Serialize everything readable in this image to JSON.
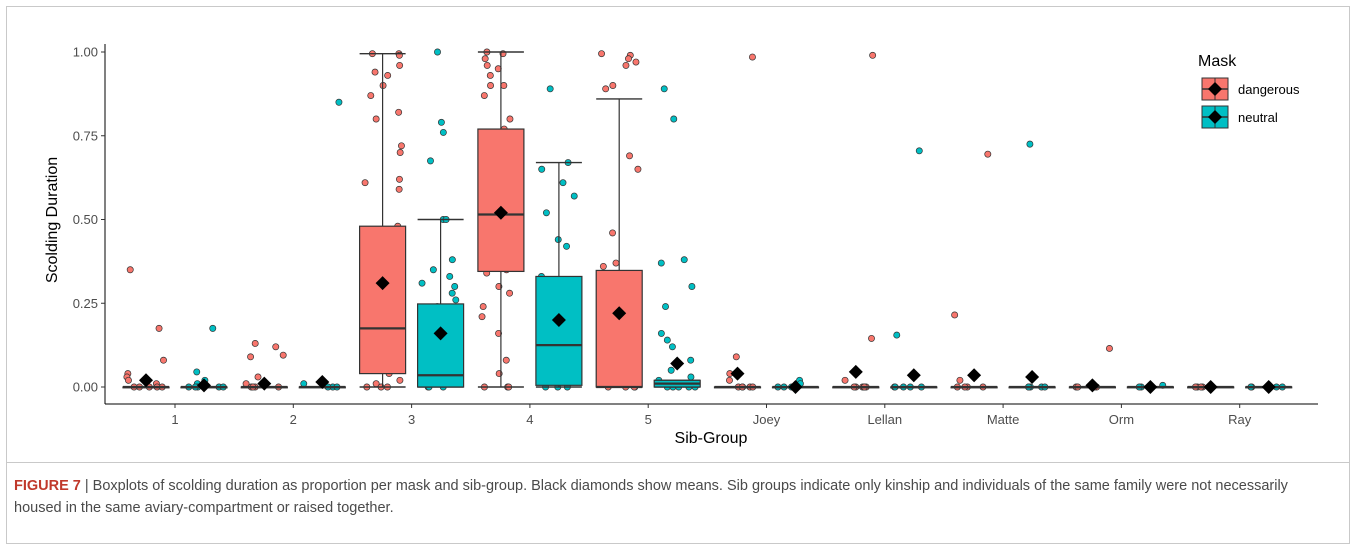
{
  "caption": {
    "label": "FIGURE 7",
    "separator": "|",
    "text": "Boxplots of scolding duration as proportion per mask and sib-group. Black diamonds show means. Sib groups indicate only kinship and individuals of the same family were not necessarily housed in the same aviary-compartment or raised together."
  },
  "chart_data": {
    "type": "boxplot",
    "xlabel": "Sib-Group",
    "ylabel": "Scolding Duration",
    "ylim": [
      0,
      1
    ],
    "yticks": [
      "0.00",
      "0.25",
      "0.50",
      "0.75",
      "1.00"
    ],
    "ytick_values": [
      0,
      0.25,
      0.5,
      0.75,
      1.0
    ],
    "grid": false,
    "legend": {
      "title": "Mask",
      "placement": "top-right",
      "entries": [
        "dangerous",
        "neutral"
      ]
    },
    "colors": {
      "dangerous": "#F8766D",
      "neutral": "#00BFC4",
      "mean": "#000000"
    },
    "categories": [
      "1",
      "2",
      "3",
      "4",
      "5",
      "Joey",
      "Lellan",
      "Matte",
      "Orm",
      "Ray"
    ],
    "series": [
      {
        "name": "dangerous",
        "boxes": [
          {
            "min": 0,
            "q1": 0,
            "median": 0,
            "q3": 0,
            "max": 0,
            "mean": 0.02
          },
          {
            "min": 0,
            "q1": 0,
            "median": 0,
            "q3": 0,
            "max": 0,
            "mean": 0.01
          },
          {
            "min": 0,
            "q1": 0.04,
            "median": 0.175,
            "q3": 0.48,
            "max": 0.995,
            "mean": 0.31
          },
          {
            "min": 0,
            "q1": 0.345,
            "median": 0.515,
            "q3": 0.77,
            "max": 1.0,
            "mean": 0.52
          },
          {
            "min": 0,
            "q1": 0,
            "median": 0,
            "q3": 0.348,
            "max": 0.86,
            "mean": 0.22
          },
          {
            "min": 0,
            "q1": 0,
            "median": 0,
            "q3": 0,
            "max": 0,
            "mean": 0.04
          },
          {
            "min": 0,
            "q1": 0,
            "median": 0,
            "q3": 0,
            "max": 0,
            "mean": 0.045
          },
          {
            "min": 0,
            "q1": 0,
            "median": 0,
            "q3": 0,
            "max": 0,
            "mean": 0.035
          },
          {
            "min": 0,
            "q1": 0,
            "median": 0,
            "q3": 0,
            "max": 0,
            "mean": 0.005
          },
          {
            "min": 0,
            "q1": 0,
            "median": 0,
            "q3": 0,
            "max": 0,
            "mean": 0.0
          }
        ],
        "points": [
          [
            0.35,
            0.175,
            0.08,
            0.04,
            0.03,
            0.02,
            0.01,
            0,
            0,
            0,
            0,
            0
          ],
          [
            0.13,
            0.12,
            0.095,
            0.09,
            0.03,
            0.01,
            0,
            0,
            0,
            0
          ],
          [
            0.995,
            0.995,
            0.99,
            0.96,
            0.94,
            0.93,
            0.9,
            0.87,
            0.82,
            0.8,
            0.72,
            0.7,
            0.62,
            0.61,
            0.59,
            0.48,
            0.47,
            0.46,
            0.39,
            0.37,
            0.35,
            0.34,
            0.31,
            0.29,
            0.27,
            0.23,
            0.22,
            0.2,
            0.18,
            0.17,
            0.16,
            0.14,
            0.12,
            0.1,
            0.09,
            0.08,
            0.05,
            0.04,
            0.02,
            0.01,
            0,
            0,
            0
          ],
          [
            1.0,
            0.995,
            0.98,
            0.96,
            0.95,
            0.93,
            0.9,
            0.9,
            0.87,
            0.8,
            0.77,
            0.76,
            0.71,
            0.68,
            0.66,
            0.62,
            0.6,
            0.58,
            0.57,
            0.56,
            0.55,
            0.52,
            0.51,
            0.49,
            0.47,
            0.45,
            0.43,
            0.41,
            0.39,
            0.37,
            0.35,
            0.34,
            0.3,
            0.28,
            0.24,
            0.21,
            0.16,
            0.08,
            0.04,
            0,
            0,
            0
          ],
          [
            0.995,
            0.99,
            0.98,
            0.97,
            0.96,
            0.9,
            0.89,
            0.69,
            0.65,
            0.46,
            0.37,
            0.36,
            0.33,
            0.29,
            0.28,
            0.24,
            0.21,
            0.17,
            0.16,
            0.12,
            0.1,
            0.03,
            0.02,
            0,
            0,
            0,
            0
          ],
          [
            0.985,
            0.09,
            0.04,
            0.02,
            0,
            0,
            0,
            0,
            0
          ],
          [
            0.99,
            0.145,
            0.02,
            0,
            0,
            0,
            0,
            0,
            0
          ],
          [
            0.695,
            0.215,
            0.02,
            0,
            0,
            0,
            0
          ],
          [
            0.115,
            0,
            0,
            0,
            0
          ],
          [
            0,
            0,
            0,
            0
          ]
        ]
      },
      {
        "name": "neutral",
        "boxes": [
          {
            "min": 0,
            "q1": 0,
            "median": 0,
            "q3": 0,
            "max": 0,
            "mean": 0.005
          },
          {
            "min": 0,
            "q1": 0,
            "median": 0,
            "q3": 0,
            "max": 0,
            "mean": 0.015
          },
          {
            "min": 0,
            "q1": 0,
            "median": 0.035,
            "q3": 0.248,
            "max": 0.5,
            "mean": 0.16
          },
          {
            "min": 0,
            "q1": 0.005,
            "median": 0.125,
            "q3": 0.33,
            "max": 0.67,
            "mean": 0.2
          },
          {
            "min": 0,
            "q1": 0,
            "median": 0.01,
            "q3": 0.02,
            "max": 0.02,
            "mean": 0.07
          },
          {
            "min": 0,
            "q1": 0,
            "median": 0,
            "q3": 0,
            "max": 0,
            "mean": 0.0
          },
          {
            "min": 0,
            "q1": 0,
            "median": 0,
            "q3": 0,
            "max": 0,
            "mean": 0.035
          },
          {
            "min": 0,
            "q1": 0,
            "median": 0,
            "q3": 0,
            "max": 0,
            "mean": 0.03
          },
          {
            "min": 0,
            "q1": 0,
            "median": 0,
            "q3": 0,
            "max": 0,
            "mean": 0.0
          },
          {
            "min": 0,
            "q1": 0,
            "median": 0,
            "q3": 0,
            "max": 0,
            "mean": 0.0
          }
        ],
        "points": [
          [
            0.175,
            0.045,
            0.02,
            0.01,
            0,
            0,
            0,
            0,
            0
          ],
          [
            0.85,
            0.01,
            0,
            0,
            0
          ],
          [
            1.0,
            0.79,
            0.76,
            0.675,
            0.5,
            0.5,
            0.38,
            0.35,
            0.33,
            0.31,
            0.3,
            0.28,
            0.26,
            0.24,
            0.21,
            0.19,
            0.17,
            0.15,
            0.13,
            0.11,
            0.1,
            0.08,
            0.06,
            0.04,
            0.03,
            0.02,
            0.01,
            0,
            0,
            0
          ],
          [
            0.89,
            0.67,
            0.65,
            0.61,
            0.57,
            0.52,
            0.44,
            0.42,
            0.33,
            0.32,
            0.31,
            0.3,
            0.27,
            0.25,
            0.22,
            0.2,
            0.17,
            0.15,
            0.13,
            0.11,
            0.09,
            0.07,
            0.04,
            0.02,
            0.01,
            0,
            0,
            0
          ],
          [
            0.89,
            0.8,
            0.38,
            0.37,
            0.3,
            0.24,
            0.16,
            0.14,
            0.12,
            0.08,
            0.05,
            0.03,
            0.02,
            0.01,
            0,
            0,
            0,
            0,
            0
          ],
          [
            0.02,
            0.01,
            0,
            0,
            0
          ],
          [
            0.705,
            0.155,
            0,
            0,
            0,
            0,
            0
          ],
          [
            0.725,
            0,
            0,
            0,
            0,
            0
          ],
          [
            0.005,
            0,
            0,
            0
          ],
          [
            0,
            0,
            0,
            0
          ]
        ]
      }
    ]
  }
}
